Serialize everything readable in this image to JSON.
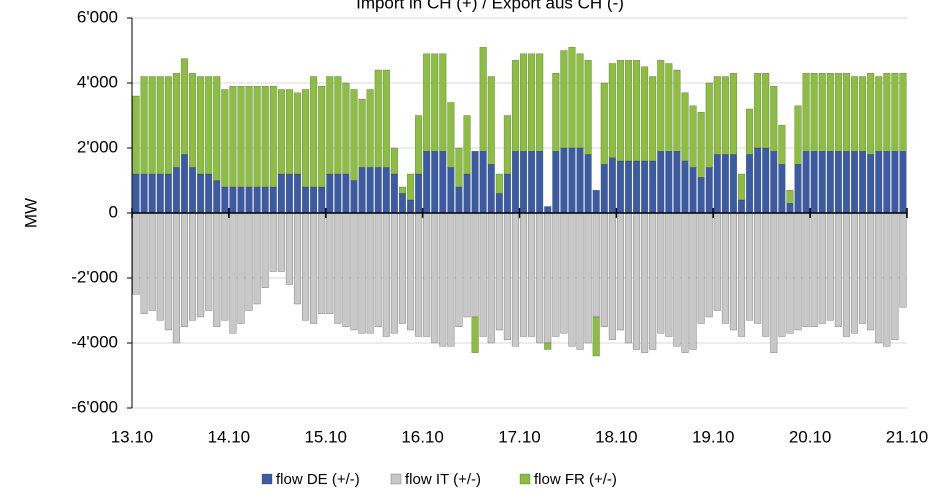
{
  "chart_data": {
    "type": "stacked_bar",
    "title": "Import in CH (+) / Export aus CH (-)",
    "y_label": "MW",
    "x": [
      1,
      3,
      5,
      7,
      9,
      11,
      13,
      15,
      17,
      19,
      21,
      23,
      25,
      27,
      29,
      31,
      33,
      35,
      37,
      39,
      41,
      43,
      45,
      47,
      49,
      51,
      53,
      55,
      57,
      59,
      61,
      63,
      65,
      67,
      69,
      71,
      73,
      75,
      77,
      79,
      81,
      83,
      85,
      87,
      89,
      91,
      93,
      95,
      97,
      99,
      101,
      103,
      105,
      107,
      109,
      111,
      113,
      115,
      117,
      119,
      121,
      123,
      125,
      127,
      129,
      131,
      133,
      135,
      137,
      139,
      141,
      143,
      145,
      147,
      149,
      151,
      153,
      155,
      157,
      159,
      161,
      163,
      165,
      167,
      169,
      171,
      173,
      175,
      177,
      179,
      181,
      183,
      185,
      187,
      189,
      191
    ],
    "xlim": [
      0,
      192
    ],
    "xticks": [
      {
        "value": 0,
        "label": "13.10"
      },
      {
        "value": 24,
        "label": "14.10"
      },
      {
        "value": 48,
        "label": "15.10"
      },
      {
        "value": 72,
        "label": "16.10"
      },
      {
        "value": 96,
        "label": "17.10"
      },
      {
        "value": 120,
        "label": "18.10"
      },
      {
        "value": 144,
        "label": "19.10"
      },
      {
        "value": 168,
        "label": "20.10"
      },
      {
        "value": 192,
        "label": "21.10"
      }
    ],
    "ylim": [
      -6000,
      6000
    ],
    "yticks": [
      {
        "value": -6000,
        "label": "-6'000"
      },
      {
        "value": -4000,
        "label": "-4'000"
      },
      {
        "value": -2000,
        "label": "-2'000"
      },
      0,
      {
        "value": 2000,
        "label": "2'000"
      },
      {
        "value": 4000,
        "label": "4'000"
      },
      {
        "value": 6000,
        "label": "6'000"
      }
    ],
    "grid": true,
    "legend": "bottom",
    "series": [
      {
        "name": "flow DE (+/-)",
        "color": "#3b5ba5",
        "values": [
          1200,
          1200,
          1200,
          1200,
          1200,
          1400,
          1800,
          1400,
          1200,
          1200,
          1000,
          800,
          800,
          800,
          800,
          800,
          800,
          800,
          1200,
          1200,
          1200,
          800,
          800,
          800,
          1200,
          1200,
          1200,
          1000,
          1400,
          1400,
          1400,
          1400,
          1200,
          600,
          400,
          1200,
          1900,
          1900,
          1900,
          1400,
          800,
          1200,
          1900,
          1900,
          1500,
          600,
          1200,
          1900,
          1900,
          1900,
          1900,
          200,
          1900,
          2000,
          2000,
          2000,
          1800,
          700,
          1500,
          1700,
          1600,
          1600,
          1600,
          1600,
          1600,
          1900,
          1900,
          1900,
          1600,
          1400,
          1100,
          1400,
          1800,
          1800,
          1800,
          400,
          1800,
          2000,
          2000,
          1900,
          1500,
          300,
          1500,
          1900,
          1900,
          1900,
          1900,
          1900,
          1900,
          1900,
          1900,
          1800,
          1900,
          1900,
          1900,
          1900
        ]
      },
      {
        "name": "flow IT (+/-)",
        "color": "#c8c8c8",
        "values": [
          -2500,
          -3100,
          -3000,
          -3300,
          -3600,
          -4000,
          -3500,
          -3300,
          -3200,
          -3000,
          -3500,
          -3300,
          -3700,
          -3400,
          -3000,
          -2800,
          -2300,
          -1800,
          -1800,
          -2200,
          -2800,
          -3300,
          -3400,
          -3100,
          -3100,
          -3400,
          -3500,
          -3600,
          -3700,
          -3700,
          -3500,
          -3800,
          -3700,
          -3400,
          -3600,
          -3800,
          -3800,
          -4000,
          -4100,
          -4100,
          -3500,
          -3200,
          -3200,
          -3800,
          -4000,
          -3600,
          -3900,
          -4100,
          -3800,
          -3800,
          -4000,
          -4000,
          -3800,
          -3700,
          -4100,
          -4200,
          -4000,
          -3200,
          -3500,
          -3900,
          -3600,
          -4000,
          -4200,
          -4300,
          -4200,
          -3700,
          -3800,
          -4100,
          -4300,
          -4200,
          -3400,
          -3200,
          -3000,
          -3400,
          -3600,
          -3800,
          -3300,
          -3400,
          -3800,
          -4300,
          -3800,
          -3700,
          -3600,
          -3500,
          -3500,
          -3400,
          -3300,
          -3500,
          -3800,
          -3700,
          -3400,
          -3600,
          -4000,
          -4100,
          -3900,
          -2900
        ]
      },
      {
        "name": "flow FR (+/-)",
        "color": "#8cbf3f",
        "values": [
          2400,
          3000,
          3000,
          3000,
          3000,
          2900,
          2950,
          2900,
          3000,
          3000,
          3200,
          3000,
          3100,
          3100,
          3100,
          3100,
          3100,
          3100,
          2600,
          2600,
          2500,
          3000,
          3400,
          3100,
          3000,
          3000,
          2800,
          2800,
          2100,
          2400,
          3000,
          3000,
          800,
          200,
          800,
          1800,
          3000,
          3000,
          3000,
          2000,
          1200,
          1800,
          -1100,
          3200,
          2700,
          600,
          1800,
          2800,
          3000,
          3000,
          3000,
          -200,
          2400,
          3000,
          3100,
          2900,
          2900,
          -1200,
          2500,
          2900,
          3100,
          3100,
          3100,
          2900,
          2600,
          2800,
          2700,
          2500,
          2100,
          1900,
          2000,
          2600,
          2400,
          2400,
          2500,
          800,
          1400,
          2300,
          2300,
          2000,
          1200,
          400,
          1800,
          2400,
          2400,
          2400,
          2400,
          2400,
          2400,
          2300,
          2300,
          2500,
          2300,
          2400,
          2400,
          2400
        ]
      }
    ]
  }
}
